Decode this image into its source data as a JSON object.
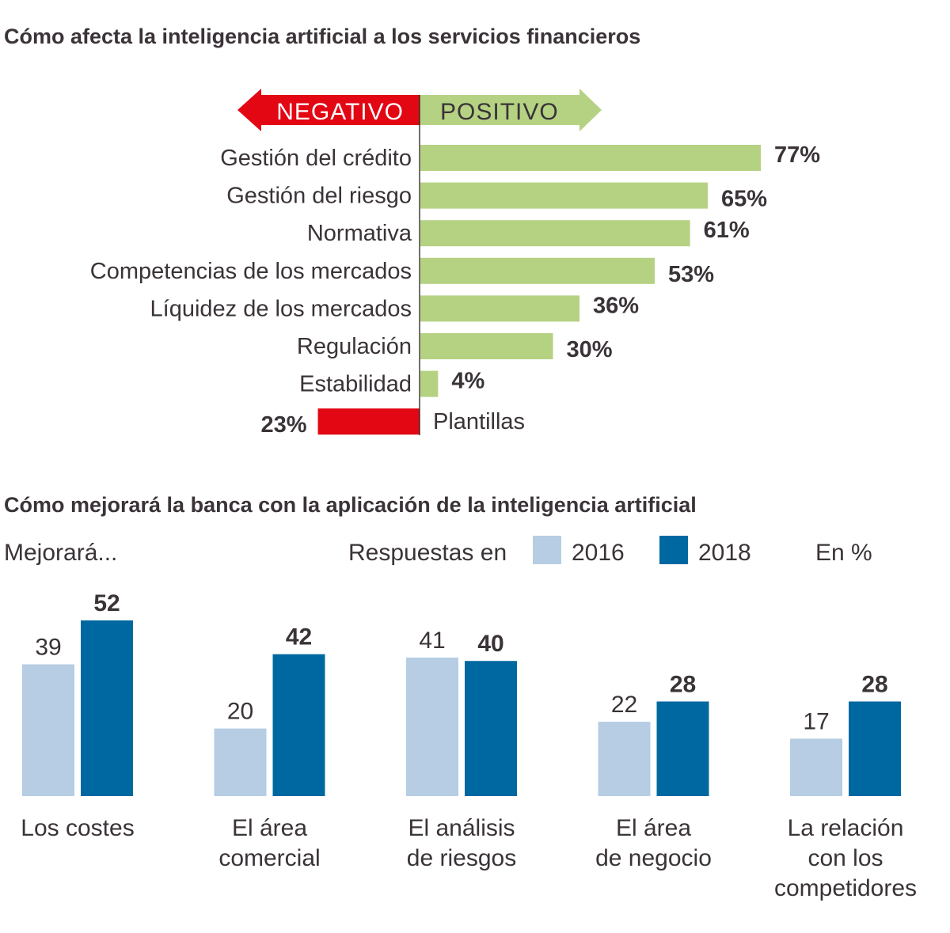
{
  "chart_data": [
    {
      "type": "bar",
      "orientation": "horizontal",
      "title": "Cómo afecta la inteligencia artificial a los servicios financieros",
      "direction_labels": {
        "negative": "NEGATIVO",
        "positive": "POSITIVO"
      },
      "categories": [
        "Gestión del crédito",
        "Gestión del riesgo",
        "Normativa",
        "Competencias de los mercados",
        "Líquidez de los mercados",
        "Regulación",
        "Estabilidad",
        "Plantillas"
      ],
      "values": [
        77,
        65,
        61,
        53,
        36,
        30,
        4,
        -23
      ],
      "value_labels": [
        "77%",
        "65%",
        "61%",
        "53%",
        "36%",
        "30%",
        "4%",
        "23%"
      ],
      "unit": "%",
      "colors": {
        "positive": "#b5d283",
        "negative": "#e30613"
      }
    },
    {
      "type": "bar",
      "title": "Cómo mejorará la banca con la aplicación de la inteligencia artificial",
      "subtitle": "Mejorará...",
      "legend_prefix": "Respuestas en",
      "unit_note": "En %",
      "categories": [
        [
          "Los costes"
        ],
        [
          "El área",
          "comercial"
        ],
        [
          "El análisis",
          "de riesgos"
        ],
        [
          "El área",
          "de negocio"
        ],
        [
          "La relación",
          "con los",
          "competidores"
        ]
      ],
      "series": [
        {
          "name": "2016",
          "values": [
            39,
            20,
            41,
            22,
            17
          ],
          "color": "#b6cde3"
        },
        {
          "name": "2018",
          "values": [
            52,
            42,
            40,
            28,
            28
          ],
          "color": "#0068a0"
        }
      ],
      "ylim": [
        0,
        52
      ]
    }
  ]
}
